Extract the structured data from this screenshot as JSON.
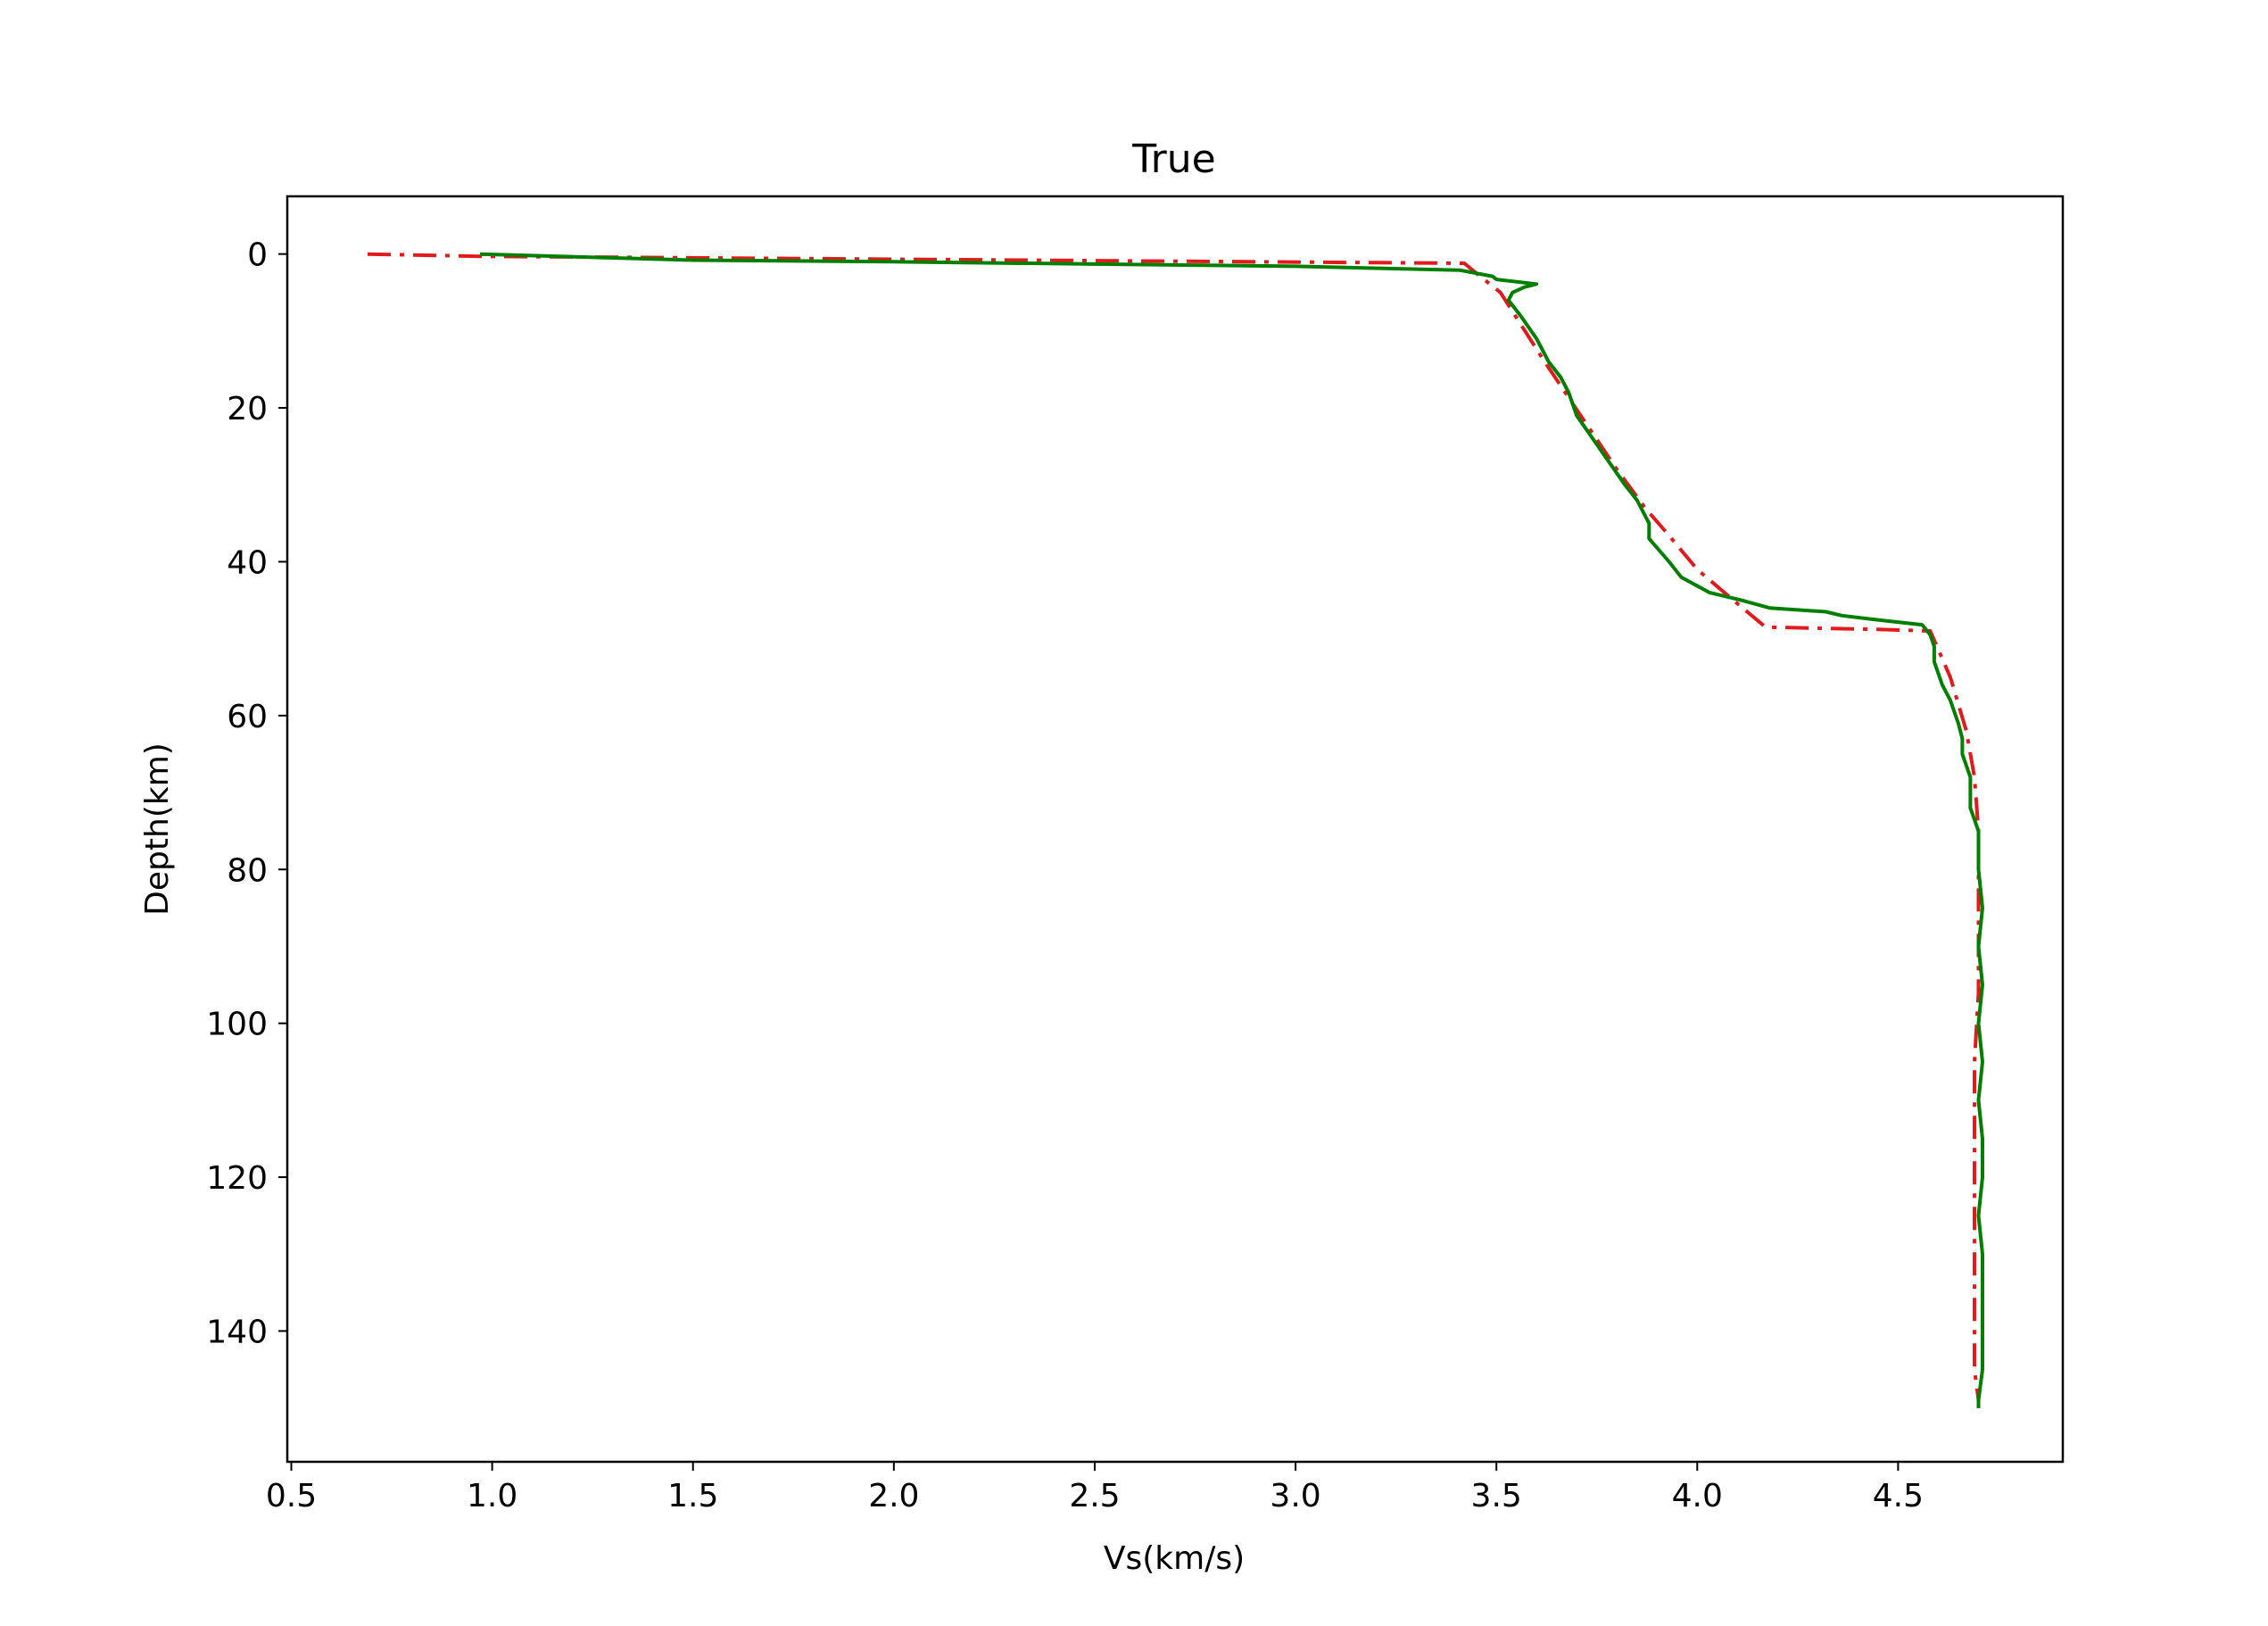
{
  "chart_data": {
    "type": "line",
    "title": "True",
    "xlabel": "Vs(km/s)",
    "ylabel": "Depth(km)",
    "xlim": [
      0.49,
      4.91
    ],
    "ylim": [
      157,
      -7.5
    ],
    "y_inverted": true,
    "grid": false,
    "xticks": [
      0.5,
      1.0,
      1.5,
      2.0,
      2.5,
      3.0,
      3.5,
      4.0,
      4.5
    ],
    "xtick_labels": [
      "0.5",
      "1.0",
      "1.5",
      "2.0",
      "2.5",
      "3.0",
      "3.5",
      "4.0",
      "4.5"
    ],
    "yticks": [
      0,
      20,
      40,
      60,
      80,
      100,
      120,
      140
    ],
    "ytick_labels": [
      "0",
      "20",
      "40",
      "60",
      "80",
      "100",
      "120",
      "140"
    ],
    "series": [
      {
        "color": "#e31a1c",
        "dash": "dashdot",
        "points": [
          [
            0.69,
            0.0
          ],
          [
            0.97,
            0.3
          ],
          [
            3.42,
            1.2
          ],
          [
            3.45,
            2.5
          ],
          [
            3.51,
            5.0
          ],
          [
            3.62,
            14.0
          ],
          [
            3.71,
            21.0
          ],
          [
            3.8,
            28.0
          ],
          [
            3.87,
            33.0
          ],
          [
            3.92,
            36.0
          ],
          [
            4.0,
            41.0
          ],
          [
            4.09,
            45.0
          ],
          [
            4.17,
            48.5
          ],
          [
            4.45,
            48.8
          ],
          [
            4.58,
            49.0
          ],
          [
            4.63,
            55.0
          ],
          [
            4.67,
            62.0
          ],
          [
            4.69,
            68.0
          ],
          [
            4.7,
            75.0
          ],
          [
            4.7,
            85.0
          ],
          [
            4.7,
            96.0
          ],
          [
            4.69,
            105.0
          ],
          [
            4.69,
            120.0
          ],
          [
            4.69,
            135.0
          ],
          [
            4.69,
            145.0
          ],
          [
            4.7,
            149.0
          ],
          [
            4.7,
            150.0
          ]
        ]
      },
      {
        "color": "#007f00",
        "dash": "solid",
        "points": [
          [
            0.97,
            0.0
          ],
          [
            1.5,
            0.8
          ],
          [
            2.0,
            1.0
          ],
          [
            2.5,
            1.3
          ],
          [
            3.0,
            1.6
          ],
          [
            3.41,
            2.1
          ],
          [
            3.49,
            2.9
          ],
          [
            3.5,
            3.3
          ],
          [
            3.6,
            3.9
          ],
          [
            3.57,
            4.3
          ],
          [
            3.54,
            5.0
          ],
          [
            3.53,
            6.0
          ],
          [
            3.56,
            8.0
          ],
          [
            3.6,
            11.0
          ],
          [
            3.63,
            14.0
          ],
          [
            3.66,
            16.0
          ],
          [
            3.68,
            18.0
          ],
          [
            3.7,
            21.0
          ],
          [
            3.74,
            24.0
          ],
          [
            3.78,
            27.0
          ],
          [
            3.82,
            30.0
          ],
          [
            3.85,
            32.0
          ],
          [
            3.88,
            35.0
          ],
          [
            3.88,
            37.0
          ],
          [
            3.93,
            40.0
          ],
          [
            3.96,
            42.0
          ],
          [
            4.03,
            44.0
          ],
          [
            4.11,
            45.0
          ],
          [
            4.18,
            46.0
          ],
          [
            4.32,
            46.5
          ],
          [
            4.36,
            47.0
          ],
          [
            4.44,
            47.5
          ],
          [
            4.56,
            48.2
          ],
          [
            4.58,
            49.5
          ],
          [
            4.59,
            51.0
          ],
          [
            4.59,
            53.0
          ],
          [
            4.61,
            56.0
          ],
          [
            4.63,
            58.0
          ],
          [
            4.65,
            61.0
          ],
          [
            4.66,
            63.0
          ],
          [
            4.66,
            65.0
          ],
          [
            4.68,
            68.0
          ],
          [
            4.68,
            72.0
          ],
          [
            4.7,
            75.0
          ],
          [
            4.7,
            80.0
          ],
          [
            4.71,
            85.0
          ],
          [
            4.7,
            90.0
          ],
          [
            4.71,
            95.0
          ],
          [
            4.7,
            100.0
          ],
          [
            4.71,
            105.0
          ],
          [
            4.7,
            110.0
          ],
          [
            4.71,
            115.0
          ],
          [
            4.71,
            120.0
          ],
          [
            4.7,
            125.0
          ],
          [
            4.71,
            130.0
          ],
          [
            4.71,
            135.0
          ],
          [
            4.71,
            140.0
          ],
          [
            4.71,
            145.0
          ],
          [
            4.7,
            149.0
          ],
          [
            4.7,
            150.0
          ]
        ]
      }
    ]
  }
}
